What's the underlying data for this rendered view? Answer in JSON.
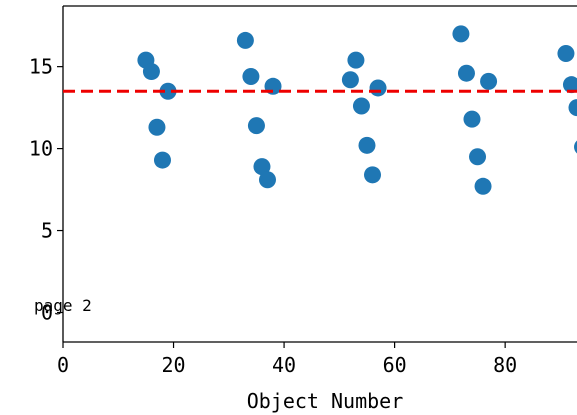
{
  "chart_data": {
    "type": "scatter",
    "xlabel": "Object Number",
    "ylabel": "",
    "xlim": [
      0,
      93
    ],
    "ylim": [
      -1.8,
      18.7
    ],
    "x_ticks": [
      0,
      20,
      40,
      60,
      80
    ],
    "y_ticks": [
      0,
      5,
      10,
      15
    ],
    "x_tick_labels": [
      "0",
      "20",
      "40",
      "60",
      "80"
    ],
    "y_tick_labels": [
      "0",
      "5",
      "10",
      "15"
    ],
    "annotation": "page 2",
    "reference_line": {
      "y": 13.5,
      "style": "dashed",
      "color": "#ee0000"
    },
    "marker_color": "#1f77b4",
    "series": [
      {
        "x": [
          15,
          16,
          17,
          18,
          19,
          33,
          34,
          35,
          36,
          37,
          38,
          52,
          53,
          54,
          55,
          56,
          57,
          72,
          73,
          74,
          75,
          76,
          77,
          91,
          92,
          93,
          94
        ],
        "y": [
          15.4,
          14.7,
          11.3,
          9.3,
          13.5,
          16.6,
          14.4,
          11.4,
          8.9,
          8.1,
          13.8,
          14.2,
          15.4,
          12.6,
          10.2,
          8.4,
          13.7,
          17.0,
          14.6,
          11.8,
          9.5,
          7.7,
          14.1,
          15.8,
          13.9,
          12.5,
          10.1
        ]
      }
    ]
  }
}
